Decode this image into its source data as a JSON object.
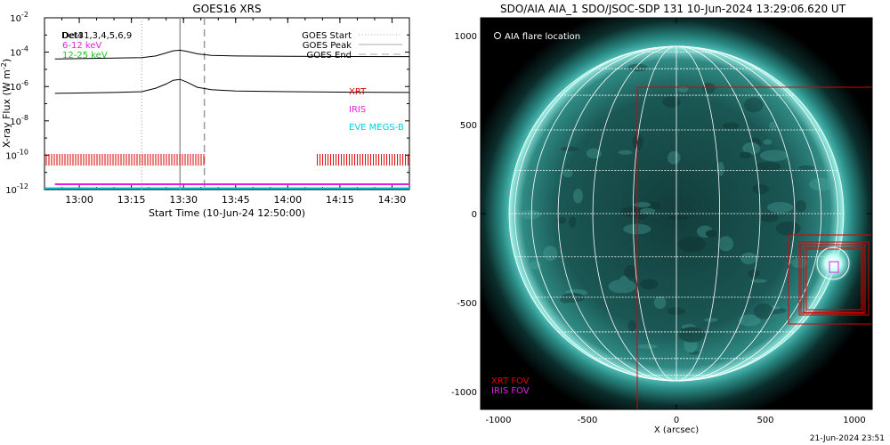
{
  "chart_data": [
    {
      "type": "line",
      "title": "GOES16 XRS",
      "xlabel": "Start Time (10-Jun-24 12:50:00)",
      "ylabel": "X-ray Flux (W m",
      "ylabel_sup": "-2",
      "ylabel_close": ")",
      "y_scale": "log",
      "ylim": [
        1e-12,
        0.01
      ],
      "xlim": [
        "12:50",
        "14:35"
      ],
      "x_ticks": [
        "13:00",
        "13:15",
        "13:30",
        "13:45",
        "14:00",
        "14:15",
        "14:30"
      ],
      "y_ticks": [
        {
          "base": "10",
          "exp": "-2",
          "value": 0.01
        },
        {
          "base": "10",
          "exp": "-4",
          "value": 0.0001
        },
        {
          "base": "10",
          "exp": "-6",
          "value": 1e-06
        },
        {
          "base": "10",
          "exp": "-8",
          "value": 1e-08
        },
        {
          "base": "10",
          "exp": "-10",
          "value": 1e-10
        },
        {
          "base": "10",
          "exp": "-12",
          "value": 1e-12
        }
      ],
      "legend_left": [
        {
          "label": "Det31,3,4,5,6,9",
          "color": "#000000",
          "overlap": "Det4"
        },
        {
          "label": "6-12 keV",
          "color": "#e020e0"
        },
        {
          "label": "12-25 keV",
          "color": "#20c020"
        }
      ],
      "legend_right": [
        {
          "label": "GOES Start",
          "style": "dotted",
          "color": "#aaaaaa"
        },
        {
          "label": "GOES Peak",
          "style": "solid",
          "color": "#aaaaaa"
        },
        {
          "label": "GOES End",
          "style": "dashed",
          "color": "#aaaaaa"
        }
      ],
      "event_markers": {
        "start": "13:18",
        "peak": "13:29",
        "end": "13:36"
      },
      "series": [
        {
          "color": "#000000",
          "x": [
            "12:53",
            "13:00",
            "13:10",
            "13:18",
            "13:22",
            "13:25",
            "13:27",
            "13:29",
            "13:31",
            "13:34",
            "13:38",
            "13:45",
            "14:00",
            "14:15",
            "14:35"
          ],
          "y": [
            4e-05,
            4.2e-05,
            4.5e-05,
            4.8e-05,
            6e-05,
            9e-05,
            0.00012,
            0.00013,
            0.00011,
            8e-05,
            6.5e-05,
            6e-05,
            5.8e-05,
            5.6e-05,
            5.5e-05
          ]
        },
        {
          "color": "#000000",
          "x": [
            "12:53",
            "13:00",
            "13:10",
            "13:18",
            "13:22",
            "13:25",
            "13:27",
            "13:29",
            "13:31",
            "13:34",
            "13:38",
            "13:45",
            "14:00",
            "14:15",
            "14:35"
          ],
          "y": [
            4e-07,
            4.2e-07,
            4.5e-07,
            5e-07,
            8e-07,
            1.4e-06,
            2.3e-06,
            2.6e-06,
            1.8e-06,
            9e-07,
            6.5e-07,
            5.5e-07,
            5e-07,
            4.7e-07,
            4.5e-07
          ]
        }
      ],
      "instrument_labels": [
        {
          "label": "XRT",
          "color": "#dd0000"
        },
        {
          "label": "IRIS",
          "color": "#e020e0"
        },
        {
          "label": "EVE MEGS-B",
          "color": "#00d0e0"
        }
      ],
      "coverage": {
        "xrt": [
          [
            "12:50",
            "13:36"
          ],
          [
            "14:05",
            "14:05"
          ],
          [
            "14:08",
            "14:35"
          ]
        ],
        "iris": [
          "12:53",
          "14:35"
        ],
        "eve": [
          "12:50",
          "14:35"
        ]
      }
    },
    {
      "type": "map",
      "title": "SDO/AIA AIA_1 SDO/JSOC-SDP 131 10-Jun-2024 13:29:06.620 UT",
      "xlabel": "X (arcsec)",
      "xlim": [
        -1100,
        1100
      ],
      "ylim": [
        -1100,
        1100
      ],
      "x_ticks": [
        -1000,
        -500,
        0,
        500,
        1000
      ],
      "y_ticks": [
        1000,
        500,
        0,
        -500,
        -1000
      ],
      "solar_radius_arcsec": 940,
      "flare_location": {
        "x": 880,
        "y": -280,
        "label": "AIA flare location"
      },
      "fov_labels": [
        {
          "label": "XRT FOV",
          "color": "#dd0000"
        },
        {
          "label": "IRIS FOV",
          "color": "#e020e0"
        }
      ],
      "xrt_fovs": [
        {
          "x0": -220,
          "y0": -1100,
          "x1": 1100,
          "y1": 710
        },
        {
          "x0": 630,
          "y0": -620,
          "x1": 1100,
          "y1": -120
        },
        {
          "x0": 690,
          "y0": -570,
          "x1": 1080,
          "y1": -160
        },
        {
          "x0": 700,
          "y0": -560,
          "x1": 1060,
          "y1": -175
        },
        {
          "x0": 715,
          "y0": -555,
          "x1": 1050,
          "y1": -190
        },
        {
          "x0": 730,
          "y0": -540,
          "x1": 1040,
          "y1": -200
        }
      ],
      "iris_fov": {
        "x0": 860,
        "y0": -330,
        "x1": 910,
        "y1": -270
      }
    }
  ],
  "footer": {
    "timestamp": "21-Jun-2024 23:51"
  }
}
